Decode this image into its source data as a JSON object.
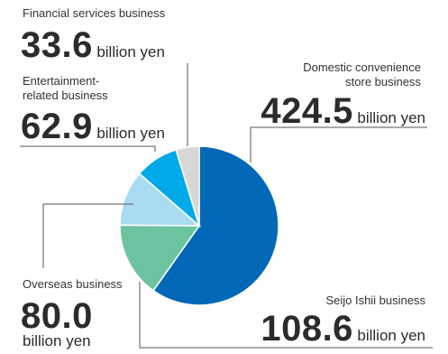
{
  "chart_data": {
    "type": "pie",
    "unit": "billion yen",
    "slices": [
      {
        "label": "Domestic convenience store business",
        "value": 424.5,
        "color": "#0068b7"
      },
      {
        "label": "Seijo Ishii business",
        "value": 108.6,
        "color": "#6cc3a0"
      },
      {
        "label": "Overseas business",
        "value": 80.0,
        "color": "#a9dcf3"
      },
      {
        "label": "Entertainment-related business",
        "value": 62.9,
        "color": "#00a9e8"
      },
      {
        "label": "Financial services business",
        "value": 33.6,
        "color": "#d7d7d7"
      }
    ]
  },
  "labels": {
    "financial": {
      "name": "Financial services business",
      "value": "33.6",
      "unit": "billion yen"
    },
    "entertainment": {
      "name_line1": "Entertainment-",
      "name_line2": "related business",
      "value": "62.9",
      "unit": "billion yen"
    },
    "domestic": {
      "name_line1": "Domestic convenience",
      "name_line2": "store business",
      "value": "424.5",
      "unit": "billion yen"
    },
    "overseas": {
      "name": "Overseas business",
      "value": "80.0",
      "unit": "billion yen"
    },
    "seijo": {
      "name": "Seijo Ishii business",
      "value": "108.6",
      "unit": "billion yen"
    }
  }
}
